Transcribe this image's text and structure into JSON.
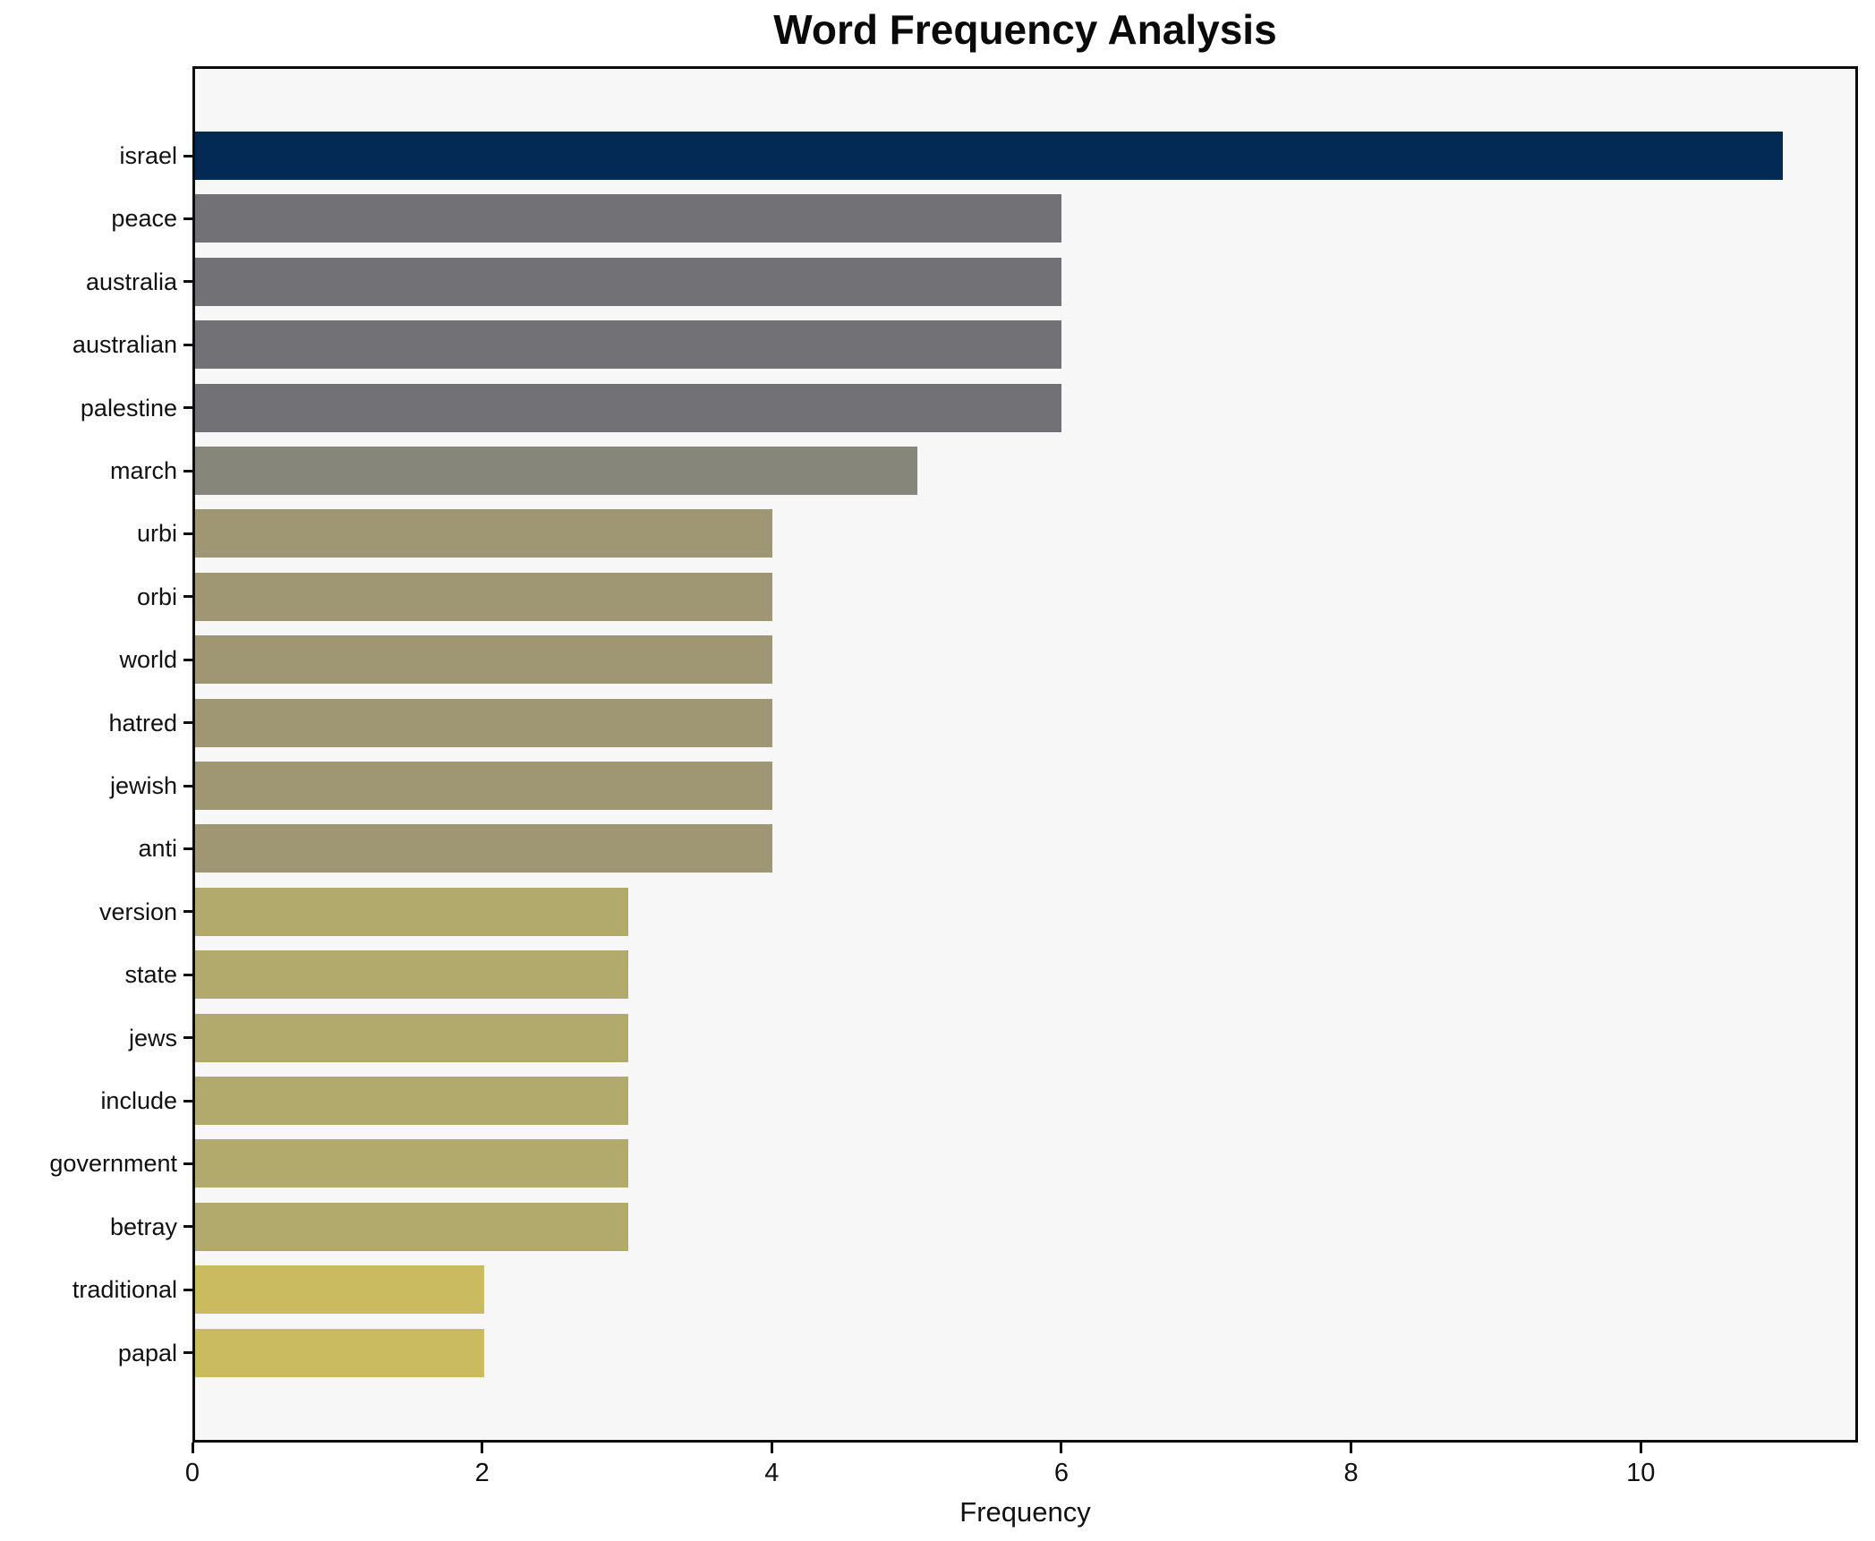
{
  "title": "Word Frequency Analysis",
  "chart_data": {
    "type": "bar",
    "orientation": "horizontal",
    "title": "Word Frequency Analysis",
    "xlabel": "Frequency",
    "ylabel": "",
    "grid": false,
    "legend": null,
    "xlim": [
      0,
      11.5
    ],
    "x_ticks": [
      0,
      2,
      4,
      6,
      8,
      10
    ],
    "plot_bg_color": "#f7f7f8",
    "spine_color": "#0d0d0d",
    "categories": [
      "israel",
      "peace",
      "australia",
      "australian",
      "palestine",
      "march",
      "urbi",
      "orbi",
      "world",
      "hatred",
      "jewish",
      "anti",
      "version",
      "state",
      "jews",
      "include",
      "government",
      "betray",
      "traditional",
      "papal"
    ],
    "values": [
      11,
      6,
      6,
      6,
      6,
      5,
      4,
      4,
      4,
      4,
      4,
      4,
      3,
      3,
      3,
      3,
      3,
      3,
      2,
      2
    ],
    "bar_colors": [
      "#032a54",
      "#727276",
      "#727276",
      "#727276",
      "#727276",
      "#86867b",
      "#9f9774",
      "#9f9774",
      "#9f9774",
      "#9f9774",
      "#9f9774",
      "#9f9774",
      "#b2a96c",
      "#b2a96c",
      "#b2a96c",
      "#b2a96c",
      "#b2a96c",
      "#b2a96c",
      "#cbbb60",
      "#cbbb60"
    ],
    "color_by_value": {
      "11": "#032a54",
      "6": "#727276",
      "5": "#86867b",
      "4": "#9f9774",
      "3": "#b2a96c",
      "2": "#cbbb60"
    }
  },
  "layout_note": "single horizontal bar chart, no legend, no gridlines, black box spines on all four sides"
}
